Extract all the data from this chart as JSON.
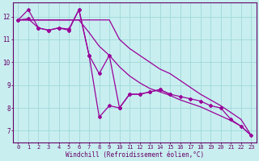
{
  "title": "",
  "xlabel": "Windchill (Refroidissement éolien,°C)",
  "ylabel": "",
  "bg_color": "#c8eef0",
  "line_color": "#990099",
  "grid_color": "#a0d8d8",
  "axis_color": "#660066",
  "text_color": "#660066",
  "xlim": [
    -0.5,
    23.5
  ],
  "ylim": [
    6.5,
    12.6
  ],
  "xticks": [
    0,
    1,
    2,
    3,
    4,
    5,
    6,
    7,
    8,
    9,
    10,
    11,
    12,
    13,
    14,
    15,
    16,
    17,
    18,
    19,
    20,
    21,
    22,
    23
  ],
  "yticks": [
    7,
    8,
    9,
    10,
    11,
    12
  ],
  "series": [
    {
      "x": [
        0,
        1,
        2,
        3,
        4,
        5,
        6,
        7,
        8,
        9,
        10,
        11,
        12,
        13,
        14,
        15,
        16,
        17,
        18,
        19,
        20,
        21,
        22,
        23
      ],
      "y": [
        11.85,
        11.85,
        11.85,
        11.85,
        11.85,
        11.85,
        11.85,
        11.85,
        11.85,
        11.85,
        11.0,
        10.6,
        10.3,
        10.0,
        9.7,
        9.5,
        9.2,
        8.9,
        8.6,
        8.35,
        8.1,
        7.8,
        7.5,
        6.8
      ],
      "marker": false
    },
    {
      "x": [
        0,
        1,
        2,
        3,
        4,
        5,
        6,
        7,
        8,
        9,
        10,
        11,
        12,
        13,
        14,
        15,
        16,
        17,
        18,
        19,
        20,
        21,
        22,
        23
      ],
      "y": [
        11.85,
        11.85,
        11.85,
        11.85,
        11.85,
        11.85,
        11.85,
        11.3,
        10.7,
        10.3,
        9.8,
        9.4,
        9.1,
        8.85,
        8.7,
        8.55,
        8.35,
        8.2,
        8.05,
        7.85,
        7.65,
        7.45,
        7.2,
        6.8
      ],
      "marker": false
    },
    {
      "x": [
        0,
        1,
        2,
        3,
        4,
        5,
        6,
        7,
        8,
        9,
        10,
        11,
        12,
        13,
        14,
        15
      ],
      "y": [
        11.85,
        12.3,
        11.5,
        11.4,
        11.5,
        11.4,
        12.3,
        10.3,
        9.5,
        10.3,
        8.0,
        8.6,
        8.6,
        8.7,
        8.8,
        8.6
      ],
      "marker": true
    },
    {
      "x": [
        0,
        1,
        2,
        3,
        4,
        5,
        6,
        7,
        8,
        9,
        10,
        11,
        12,
        13,
        14,
        15,
        16,
        17,
        18,
        19,
        20,
        21,
        22,
        23
      ],
      "y": [
        11.85,
        11.9,
        11.5,
        11.4,
        11.5,
        11.45,
        12.3,
        10.3,
        7.6,
        8.1,
        8.0,
        8.6,
        8.6,
        8.7,
        8.8,
        8.6,
        8.5,
        8.4,
        8.3,
        8.1,
        8.0,
        7.5,
        7.2,
        6.8
      ],
      "marker": true
    }
  ]
}
